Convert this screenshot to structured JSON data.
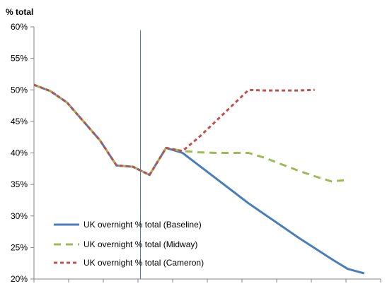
{
  "chart_data": {
    "type": "line",
    "title": "",
    "ylabel": "% total",
    "xlabel": "",
    "ylim": [
      0.2,
      0.6
    ],
    "yticks": [
      0.2,
      0.25,
      0.3,
      0.35,
      0.4,
      0.45,
      0.5,
      0.55,
      0.6
    ],
    "ytick_labels": [
      "20%",
      "25%",
      "30%",
      "35%",
      "40%",
      "45%",
      "50%",
      "55%",
      "60%"
    ],
    "n_x_ticks": 10,
    "x": [
      0,
      1,
      2,
      3,
      4,
      5,
      6,
      7,
      8,
      9,
      10,
      11,
      12,
      13,
      14,
      15,
      16,
      17,
      18,
      19,
      20,
      21
    ],
    "vertical_marker_x": 6.45,
    "series": [
      {
        "name": "UK overnight % total  (Baseline)",
        "color": "#4a7ebb",
        "dash": "solid",
        "values": [
          0.508,
          0.498,
          0.48,
          0.45,
          0.42,
          0.38,
          0.378,
          0.365,
          0.408,
          0.4,
          0.38,
          0.36,
          0.34,
          0.32,
          0.302,
          0.284,
          0.266,
          0.249,
          0.232,
          0.216,
          0.209,
          null
        ]
      },
      {
        "name": "UK overnight % total  (Midway)",
        "color": "#9bbb59",
        "dash": "long",
        "values": [
          0.508,
          0.498,
          0.48,
          0.45,
          0.42,
          0.38,
          0.378,
          0.365,
          0.408,
          0.403,
          0.401,
          0.4,
          0.4,
          0.4,
          0.392,
          0.382,
          0.372,
          0.363,
          0.355,
          0.357,
          null,
          null
        ]
      },
      {
        "name": "UK overnight % total  (Cameron)",
        "color": "#c0504d",
        "dash": "short",
        "values": [
          0.508,
          0.498,
          0.48,
          0.45,
          0.42,
          0.38,
          0.378,
          0.365,
          0.408,
          0.403,
          0.425,
          0.45,
          0.475,
          0.5,
          0.499,
          0.499,
          0.499,
          0.5,
          null,
          null,
          null,
          null
        ]
      }
    ],
    "legend": {
      "position": "bottom-left"
    }
  }
}
